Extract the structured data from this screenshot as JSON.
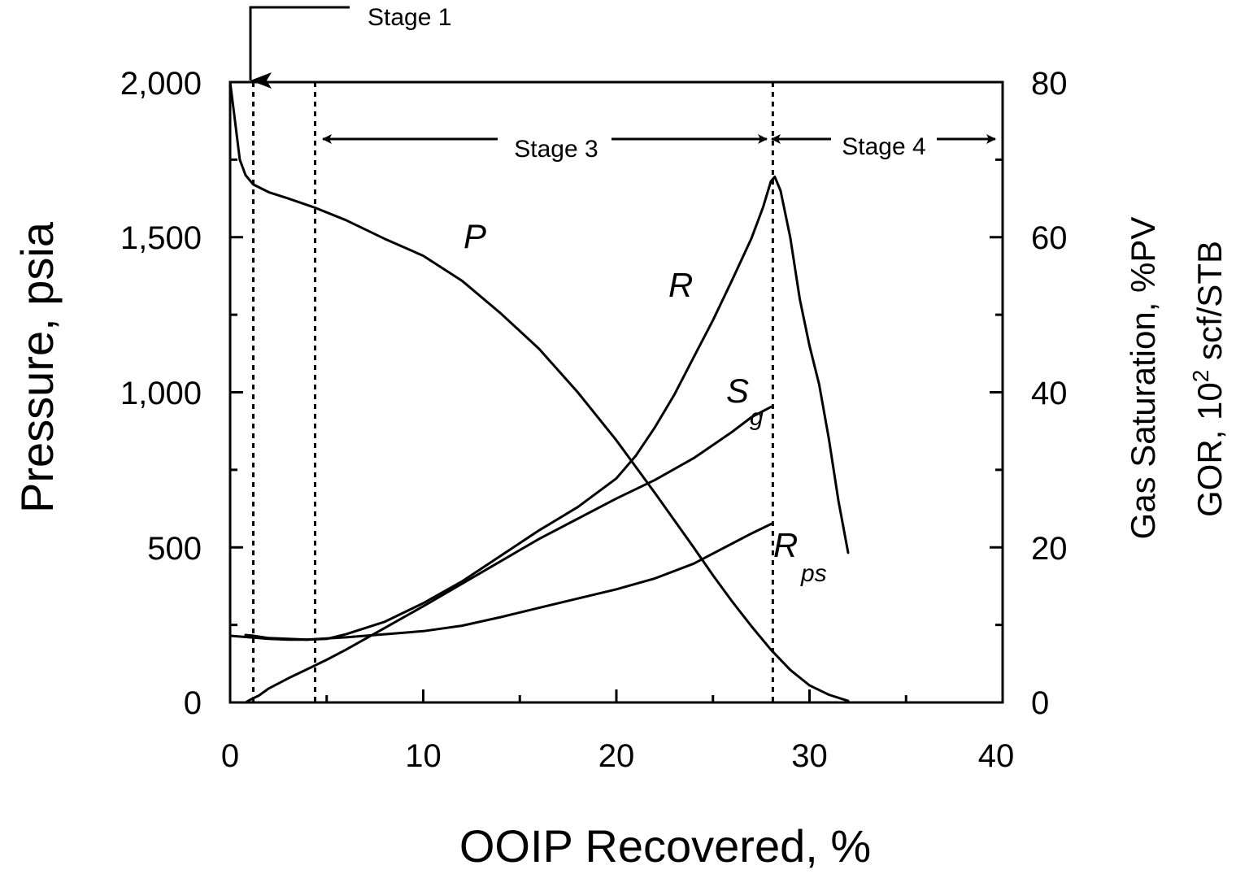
{
  "chart_data": {
    "type": "line",
    "title": "",
    "xlabel": "OOIP Recovered, %",
    "ylabel": "Pressure, psia",
    "y2label_line1": "Gas Saturation, %PV",
    "y2label_line2_prefix": "GOR, 10",
    "y2label_line2_exp": "2",
    "y2label_line2_suffix": " scf/STB",
    "xlim": [
      0,
      40
    ],
    "ylim": [
      0,
      2000
    ],
    "y2lim": [
      0,
      80
    ],
    "x_ticks": [
      0,
      10,
      20,
      30,
      40
    ],
    "x_tick_labels": [
      "0",
      "10",
      "20",
      "30",
      "40"
    ],
    "y_ticks": [
      0,
      500,
      1000,
      1500,
      2000
    ],
    "y_tick_labels": [
      "0",
      "500",
      "1,000",
      "1,500",
      "2,000"
    ],
    "y2_ticks": [
      0,
      20,
      40,
      60,
      80
    ],
    "y2_tick_labels": [
      "0",
      "20",
      "40",
      "60",
      "80"
    ],
    "grid": false,
    "stage_boundaries": [
      1.2,
      4.4,
      28.1
    ],
    "stages": [
      {
        "label": "Stage 1",
        "annotation": "arrow pointing down to start of plot"
      },
      {
        "label": "Stage 3",
        "from": 4.4,
        "to": 28.1
      },
      {
        "label": "Stage 4",
        "from": 28.1,
        "to": 39.6
      }
    ],
    "series": [
      {
        "name": "P",
        "label": "P",
        "label_sub": "",
        "axis": "left",
        "x": [
          0,
          0.2,
          0.5,
          0.8,
          1.2,
          2,
          3,
          4.4,
          6,
          8,
          10,
          12,
          14,
          16,
          18,
          20,
          22,
          24,
          25,
          26,
          27,
          28,
          29,
          30,
          31,
          32
        ],
        "y": [
          2000,
          1900,
          1750,
          1700,
          1670,
          1645,
          1625,
          1595,
          1555,
          1495,
          1440,
          1360,
          1255,
          1140,
          1000,
          845,
          675,
          500,
          410,
          325,
          245,
          170,
          105,
          55,
          25,
          5
        ]
      },
      {
        "name": "R",
        "label": "R",
        "label_sub": "",
        "axis": "right",
        "x": [
          0,
          1,
          2,
          3,
          4,
          5,
          6,
          8,
          10,
          12,
          14,
          16,
          18,
          20,
          21,
          22,
          23,
          24,
          25,
          26,
          27,
          27.6,
          28,
          28.2,
          28.5,
          29,
          29.5,
          30,
          30.5,
          31,
          31.5,
          32
        ],
        "y": [
          8.6,
          8.4,
          8.2,
          8.1,
          8.1,
          8.2,
          8.8,
          10.4,
          12.8,
          15.6,
          18.9,
          22.2,
          25.2,
          28.9,
          31.8,
          35.5,
          39.7,
          44.5,
          49.3,
          54.5,
          59.9,
          63.9,
          67.2,
          67.8,
          66.0,
          60.0,
          52.0,
          46.0,
          41.0,
          34.0,
          26.0,
          19.3
        ]
      },
      {
        "name": "Sg",
        "label": "S",
        "label_sub": "g",
        "axis": "right",
        "x": [
          0.8,
          1,
          1.5,
          2,
          3,
          4,
          5,
          6,
          8,
          10,
          12,
          14,
          16,
          18,
          20,
          22,
          24,
          26,
          27,
          28
        ],
        "y": [
          0,
          0.3,
          0.9,
          1.8,
          3.1,
          4.3,
          5.5,
          6.8,
          9.6,
          12.4,
          15.3,
          18.2,
          21.1,
          23.7,
          26.3,
          28.7,
          31.5,
          34.9,
          36.8,
          38.1
        ]
      },
      {
        "name": "Rps",
        "label": "R",
        "label_sub": "ps",
        "axis": "right",
        "x": [
          0.8,
          1.2,
          2,
          4,
          6,
          8,
          10,
          12,
          14,
          16,
          18,
          20,
          22,
          24,
          26,
          27,
          28
        ],
        "y": [
          8.7,
          8.6,
          8.3,
          8.1,
          8.4,
          8.8,
          9.2,
          9.9,
          11.0,
          12.2,
          13.4,
          14.6,
          16.0,
          17.9,
          20.5,
          21.8,
          23.0
        ]
      }
    ]
  }
}
